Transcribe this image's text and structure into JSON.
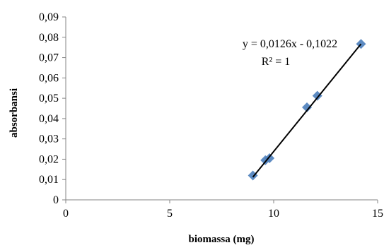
{
  "chart_data": {
    "type": "scatter",
    "xlabel": "biomassa (mg)",
    "ylabel": "absorbansi",
    "xlim": [
      0,
      15
    ],
    "ylim": [
      0,
      0.09
    ],
    "x_ticks": [
      0,
      5,
      10,
      15
    ],
    "x_tick_labels": [
      "0",
      "5",
      "10",
      "15"
    ],
    "y_ticks": [
      0,
      0.01,
      0.02,
      0.03,
      0.04,
      0.05,
      0.06,
      0.07,
      0.08,
      0.09
    ],
    "y_tick_labels": [
      "0",
      "0,01",
      "0,02",
      "0,03",
      "0,04",
      "0,05",
      "0,06",
      "0,07",
      "0,08",
      "0,09"
    ],
    "grid": false,
    "legend": "none",
    "marker": "diamond",
    "marker_color": "#4f81bd",
    "trendline_color": "#000000",
    "points": [
      {
        "x": 9.0,
        "y": 0.012
      },
      {
        "x": 9.6,
        "y": 0.0195
      },
      {
        "x": 9.8,
        "y": 0.0205
      },
      {
        "x": 11.6,
        "y": 0.0455
      },
      {
        "x": 12.1,
        "y": 0.0512
      },
      {
        "x": 14.2,
        "y": 0.0767
      }
    ],
    "trendline": {
      "slope": 0.0126,
      "intercept": -0.1022,
      "x_range": [
        9.0,
        14.2
      ],
      "equation_label": "y = 0,0126x - 0,1022",
      "r2_label": "R² = 1"
    }
  }
}
